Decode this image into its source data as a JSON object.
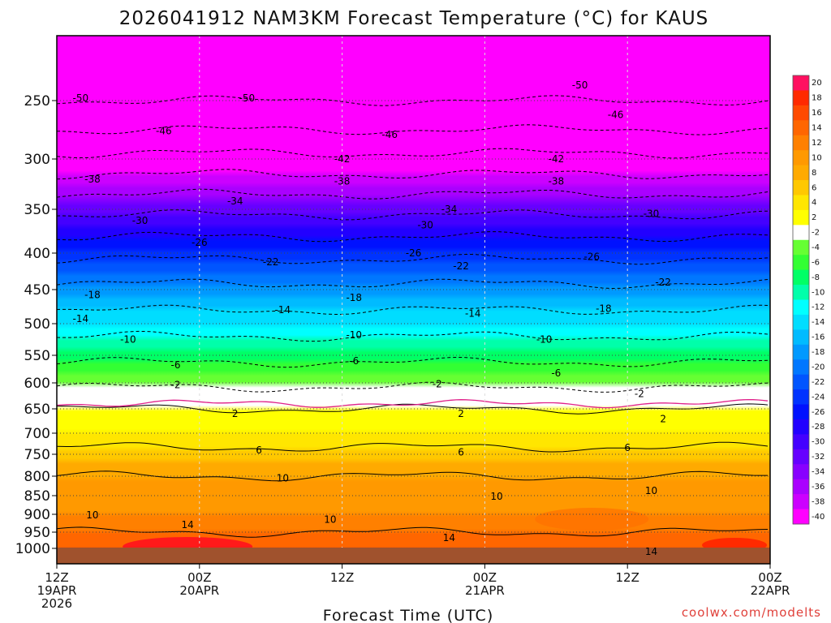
{
  "chart_data": {
    "type": "heatmap",
    "title": "2026041912 NAM3KM Forecast Temperature (°C) for KAUS",
    "xlabel": "Forecast Time (UTC)",
    "ylabel": "",
    "credit": "coolwx.com/modelts",
    "y_ticks": [
      250,
      300,
      350,
      400,
      450,
      500,
      550,
      600,
      650,
      700,
      750,
      800,
      850,
      900,
      950,
      1000
    ],
    "y_tick_labels": [
      "250",
      "300",
      "350",
      "400",
      "450",
      "500",
      "550",
      "600",
      "650",
      "700",
      "750",
      "800",
      "850",
      "900",
      "950",
      "1000"
    ],
    "x_ticks": [
      0,
      12,
      24,
      36,
      48,
      60
    ],
    "x_tick_labels": [
      {
        "time": "12Z",
        "date": "19APR",
        "year": "2026"
      },
      {
        "time": "00Z",
        "date": "20APR",
        "year": ""
      },
      {
        "time": "12Z",
        "date": "",
        "year": ""
      },
      {
        "time": "00Z",
        "date": "21APR",
        "year": ""
      },
      {
        "time": "12Z",
        "date": "",
        "year": ""
      },
      {
        "time": "00Z",
        "date": "22APR",
        "year": ""
      }
    ],
    "colorbar": {
      "levels": [
        20,
        18,
        16,
        14,
        12,
        10,
        8,
        6,
        4,
        2,
        -2,
        -4,
        -6,
        -8,
        -10,
        -12,
        -14,
        -16,
        -18,
        -20,
        -22,
        -24,
        -26,
        -28,
        -30,
        -32,
        -34,
        -36,
        -38,
        -40
      ],
      "colors": [
        "#ff1060",
        "#ff2a00",
        "#ff4a00",
        "#ff6600",
        "#ff8000",
        "#ff9900",
        "#ffaa00",
        "#ffc800",
        "#ffe600",
        "#ffff00",
        "#ffffff",
        "#66ff33",
        "#33ff33",
        "#00ff66",
        "#00ffaa",
        "#00ffff",
        "#00ddff",
        "#00bbff",
        "#0099ff",
        "#0077ff",
        "#0055ff",
        "#0033ff",
        "#0011ff",
        "#2200ff",
        "#4400ff",
        "#6600ff",
        "#8800ff",
        "#aa00ff",
        "#cc00ff",
        "#ff00ff"
      ]
    },
    "temperature_profile": [
      {
        "pressure": 200,
        "temp": -54
      },
      {
        "pressure": 250,
        "temp": -50
      },
      {
        "pressure": 275,
        "temp": -46
      },
      {
        "pressure": 300,
        "temp": -41
      },
      {
        "pressure": 350,
        "temp": -31
      },
      {
        "pressure": 400,
        "temp": -23
      },
      {
        "pressure": 450,
        "temp": -17
      },
      {
        "pressure": 500,
        "temp": -12
      },
      {
        "pressure": 550,
        "temp": -7
      },
      {
        "pressure": 600,
        "temp": -3
      },
      {
        "pressure": 625,
        "temp": 0
      },
      {
        "pressure": 650,
        "temp": 2
      },
      {
        "pressure": 700,
        "temp": 4
      },
      {
        "pressure": 750,
        "temp": 7
      },
      {
        "pressure": 800,
        "temp": 10
      },
      {
        "pressure": 850,
        "temp": 11
      },
      {
        "pressure": 900,
        "temp": 12
      },
      {
        "pressure": 950,
        "temp": 14
      },
      {
        "pressure": 1000,
        "temp": 16
      }
    ],
    "contour_labels": [
      {
        "label": "-50",
        "hour": 2,
        "pressure": 248
      },
      {
        "label": "-50",
        "hour": 16,
        "pressure": 248
      },
      {
        "label": "-50",
        "hour": 44,
        "pressure": 238
      },
      {
        "label": "-46",
        "hour": 9,
        "pressure": 276
      },
      {
        "label": "-46",
        "hour": 28,
        "pressure": 279
      },
      {
        "label": "-46",
        "hour": 47,
        "pressure": 262
      },
      {
        "label": "-42",
        "hour": 24,
        "pressure": 300
      },
      {
        "label": "-42",
        "hour": 42,
        "pressure": 300
      },
      {
        "label": "-38",
        "hour": 3,
        "pressure": 320
      },
      {
        "label": "-38",
        "hour": 24,
        "pressure": 322
      },
      {
        "label": "-38",
        "hour": 42,
        "pressure": 322
      },
      {
        "label": "-34",
        "hour": 15,
        "pressure": 342
      },
      {
        "label": "-34",
        "hour": 33,
        "pressure": 350
      },
      {
        "label": "-30",
        "hour": 7,
        "pressure": 363
      },
      {
        "label": "-30",
        "hour": 31,
        "pressure": 368
      },
      {
        "label": "-30",
        "hour": 50,
        "pressure": 355
      },
      {
        "label": "-26",
        "hour": 12,
        "pressure": 388
      },
      {
        "label": "-26",
        "hour": 30,
        "pressure": 400
      },
      {
        "label": "-26",
        "hour": 45,
        "pressure": 405
      },
      {
        "label": "-22",
        "hour": 18,
        "pressure": 412
      },
      {
        "label": "-22",
        "hour": 34,
        "pressure": 418
      },
      {
        "label": "-22",
        "hour": 51,
        "pressure": 440
      },
      {
        "label": "-18",
        "hour": 3,
        "pressure": 458
      },
      {
        "label": "-18",
        "hour": 25,
        "pressure": 462
      },
      {
        "label": "-18",
        "hour": 46,
        "pressure": 478
      },
      {
        "label": "-14",
        "hour": 2,
        "pressure": 493
      },
      {
        "label": "-14",
        "hour": 19,
        "pressure": 480
      },
      {
        "label": "-14",
        "hour": 35,
        "pressure": 485
      },
      {
        "label": "-10",
        "hour": 6,
        "pressure": 525
      },
      {
        "label": "-10",
        "hour": 25,
        "pressure": 518
      },
      {
        "label": "-10",
        "hour": 41,
        "pressure": 525
      },
      {
        "label": "-6",
        "hour": 10,
        "pressure": 568
      },
      {
        "label": "-6",
        "hour": 25,
        "pressure": 560
      },
      {
        "label": "-6",
        "hour": 42,
        "pressure": 582
      },
      {
        "label": "-2",
        "hour": 10,
        "pressure": 604
      },
      {
        "label": "-2",
        "hour": 32,
        "pressure": 602
      },
      {
        "label": "-2",
        "hour": 49,
        "pressure": 621
      },
      {
        "label": "2",
        "hour": 15,
        "pressure": 660
      },
      {
        "label": "2",
        "hour": 34,
        "pressure": 660
      },
      {
        "label": "2",
        "hour": 51,
        "pressure": 671
      },
      {
        "label": "6",
        "hour": 17,
        "pressure": 740
      },
      {
        "label": "6",
        "hour": 34,
        "pressure": 745
      },
      {
        "label": "6",
        "hour": 48,
        "pressure": 735
      },
      {
        "label": "10",
        "hour": 19,
        "pressure": 805
      },
      {
        "label": "10",
        "hour": 3,
        "pressure": 902
      },
      {
        "label": "10",
        "hour": 23,
        "pressure": 915
      },
      {
        "label": "10",
        "hour": 37,
        "pressure": 852
      },
      {
        "label": "10",
        "hour": 50,
        "pressure": 838
      },
      {
        "label": "14",
        "hour": 11,
        "pressure": 930
      },
      {
        "label": "14",
        "hour": 33,
        "pressure": 968
      },
      {
        "label": "14",
        "hour": 50,
        "pressure": 1005
      }
    ]
  }
}
